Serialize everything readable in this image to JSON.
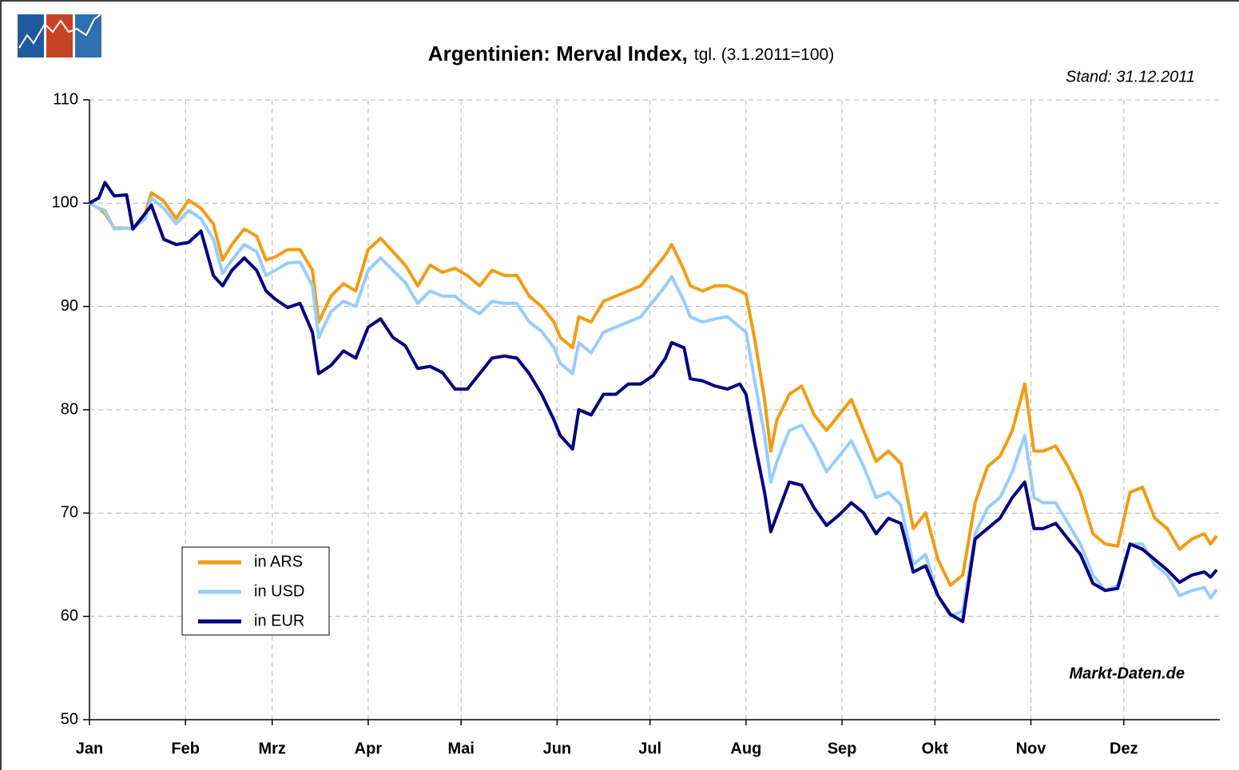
{
  "chart_data": {
    "type": "line",
    "title": "Argentinien: Merval Index,",
    "subtitle": "tgl. (3.1.2011=100)",
    "annotations": [
      "Stand: 31.12.2011",
      "Markt-Daten.de"
    ],
    "x": [
      0,
      3,
      5,
      8,
      12,
      14,
      18,
      20,
      24,
      28,
      32,
      36,
      40,
      43,
      46,
      50,
      54,
      57,
      60,
      64,
      68,
      72,
      74,
      78,
      82,
      86,
      90,
      94,
      98,
      102,
      106,
      110,
      114,
      118,
      122,
      126,
      130,
      134,
      138,
      142,
      146,
      150,
      152,
      156,
      158,
      162,
      166,
      170,
      174,
      178,
      182,
      186,
      188,
      192,
      194,
      198,
      202,
      206,
      210,
      212,
      215,
      218,
      220,
      222,
      226,
      230,
      234,
      238,
      242,
      246,
      250,
      254,
      258,
      262,
      266,
      270,
      274,
      278,
      282,
      286,
      290,
      294,
      298,
      302,
      305,
      308,
      312,
      316,
      320,
      324,
      328,
      332,
      336,
      340,
      344,
      348,
      352,
      356,
      360,
      362,
      364
    ],
    "series": [
      {
        "name": "in ARS",
        "color": "#f39c12",
        "values": [
          100,
          99.5,
          99,
          97.6,
          97.6,
          97.5,
          99,
          101,
          100.2,
          98.5,
          100.3,
          99.5,
          98,
          94.5,
          96,
          97.5,
          96.8,
          94.5,
          94.8,
          95.5,
          95.5,
          93.5,
          88.5,
          91,
          92.2,
          91.5,
          95.5,
          96.6,
          95.3,
          94,
          92,
          94,
          93.3,
          93.7,
          93,
          92,
          93.5,
          93,
          93,
          91,
          90,
          88.5,
          87,
          86,
          89,
          88.5,
          90.5,
          91,
          91.5,
          92,
          93.5,
          95,
          96,
          93.5,
          92,
          91.5,
          92,
          92,
          91.5,
          91.2,
          86.5,
          81,
          76,
          79,
          81.5,
          82.3,
          79.5,
          78,
          79.5,
          81,
          78,
          75,
          76,
          74.8,
          68.5,
          70,
          65.5,
          63,
          64,
          71,
          74.5,
          75.5,
          78,
          82.5,
          76,
          76,
          76.5,
          74.5,
          72,
          68,
          67,
          66.8,
          72,
          72.5,
          69.5,
          68.5,
          66.5,
          67.5,
          68,
          67,
          67.8
        ]
      },
      {
        "name": "in USD",
        "color": "#99ccff",
        "values": [
          100,
          99.5,
          99.3,
          97.5,
          97.6,
          97.5,
          98.5,
          100.5,
          99.5,
          98,
          99.3,
          98.5,
          96.5,
          93.2,
          94.5,
          96,
          95.3,
          93,
          93.5,
          94.2,
          94.3,
          92,
          87,
          89.5,
          90.5,
          90,
          93.5,
          94.7,
          93.5,
          92.3,
          90.3,
          91.5,
          91,
          91,
          90,
          89.3,
          90.5,
          90.3,
          90.3,
          88.5,
          87.6,
          86,
          84.5,
          83.5,
          86.5,
          85.5,
          87.5,
          88,
          88.5,
          89,
          90.5,
          92,
          92.9,
          90.5,
          89,
          88.5,
          88.8,
          89,
          88,
          87.5,
          82.5,
          77.5,
          73,
          75,
          78,
          78.5,
          76.5,
          74,
          75.5,
          77,
          74.5,
          71.5,
          72,
          70.8,
          65,
          66,
          62,
          60,
          60.5,
          68,
          70.5,
          71.5,
          74,
          77.5,
          71.5,
          71,
          71,
          69,
          67,
          64,
          62.5,
          63,
          67,
          67,
          65,
          64,
          62,
          62.5,
          62.8,
          61.8,
          62.6
        ]
      },
      {
        "name": "in EUR",
        "color": "#000080",
        "values": [
          100,
          100.5,
          102,
          100.7,
          100.8,
          97.5,
          99,
          99.8,
          96.5,
          96,
          96.2,
          97.3,
          93,
          92,
          93.5,
          94.7,
          93.5,
          91.5,
          90.7,
          89.9,
          90.3,
          87.5,
          83.5,
          84.3,
          85.7,
          85,
          88,
          88.8,
          87,
          86.2,
          84,
          84.2,
          83.6,
          82,
          82,
          83.5,
          85,
          85.2,
          85,
          83.5,
          81.5,
          79,
          77.5,
          76.2,
          80,
          79.5,
          81.5,
          81.5,
          82.5,
          82.5,
          83.3,
          85,
          86.5,
          86,
          83,
          82.8,
          82.3,
          82,
          82.5,
          81.5,
          76.5,
          72,
          68.2,
          69.8,
          73,
          72.7,
          70.5,
          68.8,
          69.8,
          71,
          70,
          68,
          69.5,
          69,
          64.3,
          64.9,
          62,
          60.2,
          59.5,
          67.5,
          68.5,
          69.5,
          71.5,
          73,
          68.5,
          68.5,
          69,
          67.5,
          66,
          63.2,
          62.5,
          62.7,
          67,
          66.5,
          65.5,
          64.5,
          63.3,
          64,
          64.3,
          63.8,
          64.5
        ]
      }
    ],
    "xlim": [
      0,
      365
    ],
    "xticks": [
      {
        "value": 0,
        "label": "Jan"
      },
      {
        "value": 31,
        "label": "Feb"
      },
      {
        "value": 59,
        "label": "Mrz"
      },
      {
        "value": 90,
        "label": "Apr"
      },
      {
        "value": 120,
        "label": "Mai"
      },
      {
        "value": 151,
        "label": "Jun"
      },
      {
        "value": 181,
        "label": "Jul"
      },
      {
        "value": 212,
        "label": "Aug"
      },
      {
        "value": 243,
        "label": "Sep"
      },
      {
        "value": 273,
        "label": "Okt"
      },
      {
        "value": 304,
        "label": "Nov"
      },
      {
        "value": 334,
        "label": "Dez"
      }
    ],
    "ylim": [
      50,
      110
    ],
    "yticks": [
      50,
      60,
      70,
      80,
      90,
      100,
      110
    ],
    "grid": true,
    "legend": "lower left"
  }
}
